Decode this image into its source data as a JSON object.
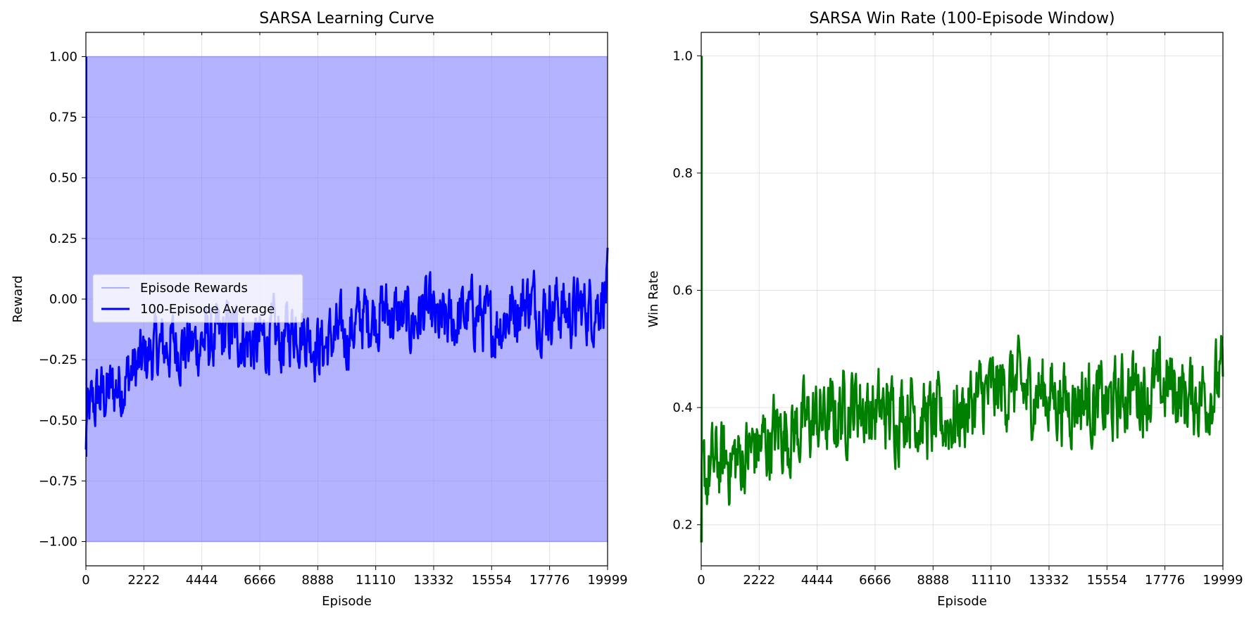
{
  "chart_data": [
    {
      "type": "line",
      "title": "SARSA Learning Curve",
      "xlabel": "Episode",
      "ylabel": "Reward",
      "xlim": [
        0,
        19999
      ],
      "ylim": [
        -1.1,
        1.1
      ],
      "xticks": [
        0,
        2222,
        4444,
        6666,
        8888,
        11110,
        13332,
        15554,
        17776,
        19999
      ],
      "yticks": [
        -1.0,
        -0.75,
        -0.5,
        -0.25,
        0.0,
        0.25,
        0.5,
        0.75,
        1.0
      ],
      "ytick_labels": [
        "−1.00",
        "−0.75",
        "−0.50",
        "−0.25",
        "0.00",
        "0.25",
        "0.50",
        "0.75",
        "1.00"
      ],
      "grid": true,
      "legend_placement": "center-left",
      "series": [
        {
          "name": "Episode Rewards",
          "color": "#8080ff",
          "style": "raw rewards oscillating between -1 and 1, rendered as filled band",
          "range": [
            -1,
            1
          ]
        },
        {
          "name": "100-Episode Average",
          "color": "#0000ff",
          "x": [
            0,
            500,
            1000,
            1500,
            2000,
            2500,
            3000,
            3500,
            4000,
            4500,
            5000,
            5500,
            6000,
            6500,
            7000,
            7500,
            8000,
            8500,
            9000,
            9500,
            10000,
            10500,
            11000,
            11500,
            12000,
            12500,
            13000,
            13500,
            14000,
            14500,
            15000,
            15500,
            16000,
            16500,
            17000,
            17500,
            18000,
            18500,
            19000,
            19500,
            19999
          ],
          "values": [
            -0.5,
            -0.4,
            -0.38,
            -0.33,
            -0.28,
            -0.22,
            -0.2,
            -0.18,
            -0.2,
            -0.17,
            -0.18,
            -0.14,
            -0.15,
            -0.2,
            -0.15,
            -0.18,
            -0.1,
            -0.14,
            -0.2,
            -0.16,
            -0.15,
            -0.08,
            -0.06,
            -0.05,
            -0.08,
            -0.1,
            -0.04,
            -0.12,
            -0.1,
            -0.07,
            -0.05,
            -0.12,
            -0.08,
            -0.03,
            0.0,
            -0.05,
            -0.02,
            -0.06,
            -0.04,
            -0.03,
            0.05
          ]
        }
      ]
    },
    {
      "type": "line",
      "title": "SARSA Win Rate (100-Episode Window)",
      "xlabel": "Episode",
      "ylabel": "Win Rate",
      "xlim": [
        0,
        19999
      ],
      "ylim": [
        0.13,
        1.04
      ],
      "xticks": [
        0,
        2222,
        4444,
        6666,
        8888,
        11110,
        13332,
        15554,
        17776,
        19999
      ],
      "yticks": [
        0.2,
        0.4,
        0.6,
        0.8,
        1.0
      ],
      "ytick_labels": [
        "0.2",
        "0.4",
        "0.6",
        "0.8",
        "1.0"
      ],
      "grid": true,
      "series": [
        {
          "color": "#008000",
          "x": [
            0,
            500,
            1000,
            1500,
            2000,
            2500,
            3000,
            3500,
            4000,
            4500,
            5000,
            5500,
            6000,
            6500,
            7000,
            7500,
            8000,
            8500,
            9000,
            9500,
            10000,
            10500,
            11000,
            11500,
            12000,
            12500,
            13000,
            13500,
            14000,
            14500,
            15000,
            15500,
            16000,
            16500,
            17000,
            17500,
            18000,
            18500,
            19000,
            19500,
            19999
          ],
          "values": [
            0.27,
            0.3,
            0.31,
            0.31,
            0.33,
            0.34,
            0.36,
            0.36,
            0.37,
            0.38,
            0.38,
            0.4,
            0.41,
            0.39,
            0.39,
            0.39,
            0.41,
            0.38,
            0.37,
            0.38,
            0.39,
            0.41,
            0.42,
            0.43,
            0.44,
            0.42,
            0.43,
            0.42,
            0.41,
            0.42,
            0.41,
            0.4,
            0.41,
            0.44,
            0.43,
            0.43,
            0.44,
            0.42,
            0.42,
            0.43,
            0.45
          ]
        }
      ]
    }
  ]
}
